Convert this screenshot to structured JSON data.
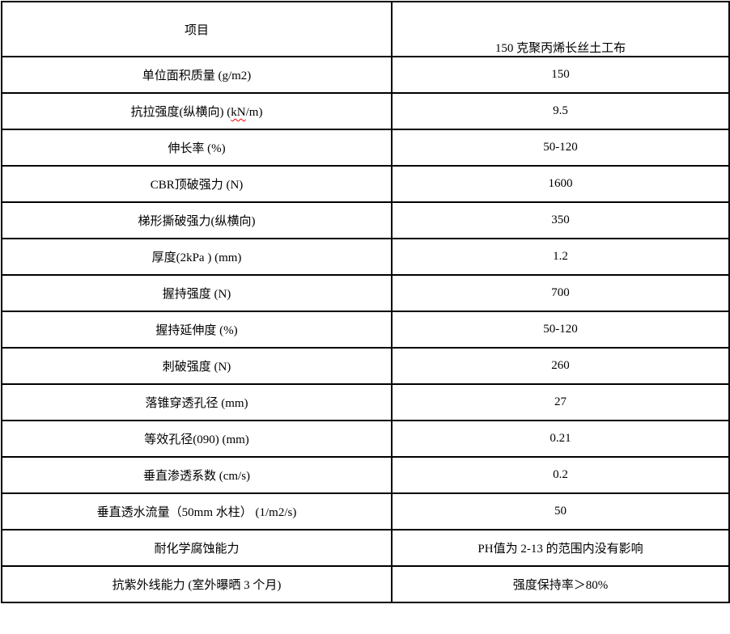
{
  "page": {
    "background_color": "#ffffff",
    "text_color": "#000000",
    "border_color": "#000000",
    "spellcheck_color": "#ff0000"
  },
  "table": {
    "header": {
      "item_label": "项目",
      "product_label": "150 克聚丙烯长丝土工布"
    },
    "rows": [
      {
        "item": "单位面积质量 (g/m2)",
        "value": "150"
      },
      {
        "item": "抗拉强度(纵横向) (kN/m)",
        "value": "9.5",
        "spellcheck_word": "kN"
      },
      {
        "item": "伸长率 (%)",
        "value": "50-120"
      },
      {
        "item": "CBR顶破强力 (N)",
        "value": "1600"
      },
      {
        "item": "梯形撕破强力(纵横向)",
        "value": "350"
      },
      {
        "item": "厚度(2kPa ) (mm)",
        "value": "1.2"
      },
      {
        "item": "握持强度 (N)",
        "value": "700"
      },
      {
        "item": "握持延伸度 (%)",
        "value": "50-120"
      },
      {
        "item": "刺破强度 (N)",
        "value": "260"
      },
      {
        "item": "落锥穿透孔径 (mm)",
        "value": "27"
      },
      {
        "item": "等效孔径(090) (mm)",
        "value": "0.21"
      },
      {
        "item": "垂直渗透系数 (cm/s)",
        "value": "0.2"
      },
      {
        "item": "垂直透水流量（50mm 水柱） (1/m2/s)",
        "value": "50"
      },
      {
        "item": "耐化学腐蚀能力",
        "value": "PH值为 2-13 的范围内没有影响"
      },
      {
        "item": "抗紫外线能力 (室外曝晒 3 个月)",
        "value": "强度保持率＞80%"
      }
    ]
  }
}
